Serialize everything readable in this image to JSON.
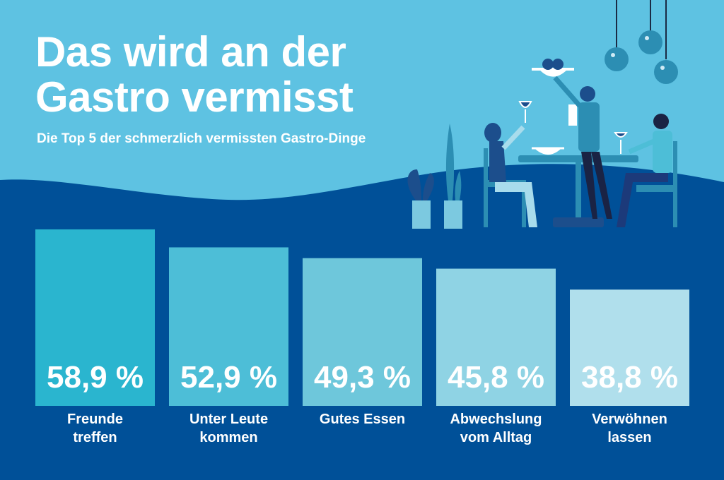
{
  "title_line1": "Das wird an der",
  "title_line2": "Gastro vermisst",
  "subtitle": "Die Top 5 der schmerzlich vermissten Gastro-Dinge",
  "colors": {
    "background_top": "#5EC2E2",
    "background_bottom": "#005098",
    "bars": [
      "#2AB5CF",
      "#4DBED7",
      "#6EC7DB",
      "#8FD3E4",
      "#B0DFEC"
    ]
  },
  "illustration": "restaurant-scene-waiter-guests-icon",
  "chart_data": {
    "type": "bar",
    "categories": [
      "Freunde\ntreffen",
      "Unter Leute\nkommen",
      "Gutes Essen",
      "Abwechslung\nvom Alltag",
      "Verwöhnen\nlassen"
    ],
    "values": [
      58.9,
      52.9,
      49.3,
      45.8,
      38.8
    ],
    "data_labels": [
      "58,9 %",
      "52,9 %",
      "49,3 %",
      "45,8 %",
      "38,8 %"
    ],
    "unit": "%",
    "title": "Das wird an der Gastro vermisst",
    "grid": false
  }
}
